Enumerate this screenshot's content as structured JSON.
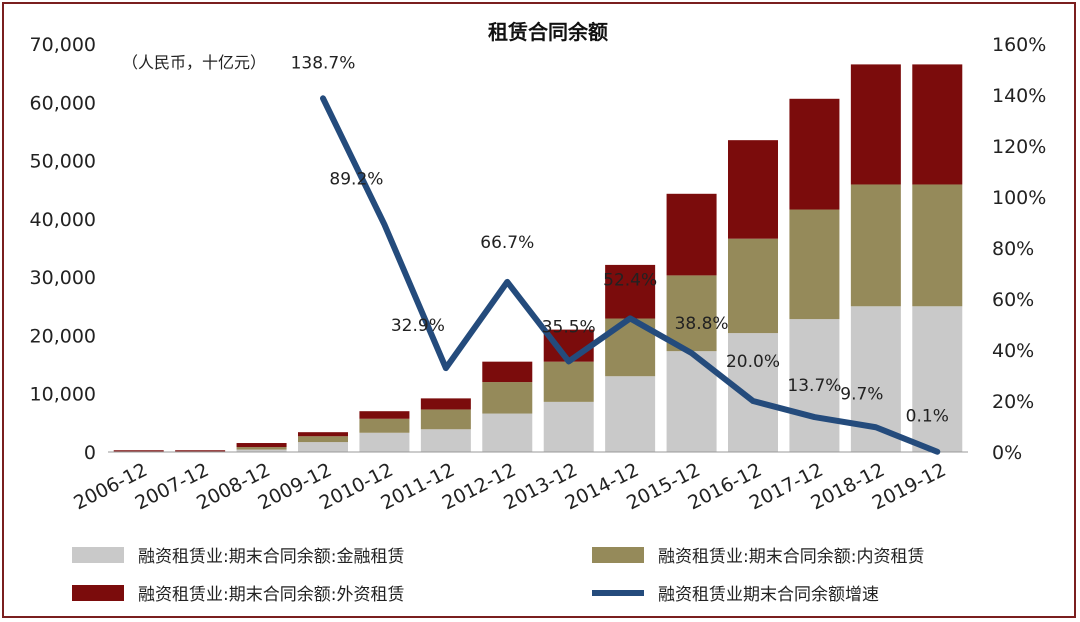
{
  "chart_data": {
    "type": "bar",
    "title": "租赁合同余额",
    "unit_note": "（人民币，十亿元）",
    "categories": [
      "2006-12",
      "2007-12",
      "2008-12",
      "2009-12",
      "2010-12",
      "2011-12",
      "2012-12",
      "2013-12",
      "2014-12",
      "2015-12",
      "2016-12",
      "2017-12",
      "2018-12",
      "2019-12"
    ],
    "stacked_series": [
      {
        "name": "融资租赁业:期末合同余额:金融租赁",
        "color": "#c9c9c9",
        "values": [
          100,
          100,
          420,
          1700,
          3300,
          3900,
          6600,
          8600,
          13000,
          17300,
          20400,
          22800,
          25000,
          25000
        ]
      },
      {
        "name": "融资租赁业:期末合同余额:内资租赁",
        "color": "#958a5a",
        "values": [
          0,
          0,
          420,
          1000,
          2400,
          3400,
          5400,
          6900,
          9900,
          13000,
          16200,
          18800,
          20900,
          20900
        ]
      },
      {
        "name": "融资租赁业:期末合同余额:外资租赁",
        "color": "#7b0c0c",
        "values": [
          200,
          200,
          700,
          700,
          1300,
          1900,
          3500,
          5500,
          9200,
          14000,
          16900,
          19000,
          20600,
          20600
        ]
      }
    ],
    "line_series": {
      "name": "融资租赁业期末合同余额增速",
      "color": "#244b7c",
      "categories": [
        "2009-12",
        "2010-12",
        "2011-12",
        "2012-12",
        "2013-12",
        "2014-12",
        "2015-12",
        "2016-12",
        "2017-12",
        "2018-12",
        "2019-12"
      ],
      "values": [
        138.7,
        89.2,
        32.9,
        66.7,
        35.5,
        52.4,
        38.8,
        20.0,
        13.7,
        9.7,
        0.1
      ],
      "labels": [
        "138.7%",
        "89.2%",
        "32.9%",
        "66.7%",
        "35.5%",
        "52.4%",
        "38.8%",
        "20.0%",
        "13.7%",
        "9.7%",
        "0.1%"
      ]
    },
    "y_left": {
      "min": 0,
      "max": 70000,
      "ticks": [
        "0",
        "10,000",
        "20,000",
        "30,000",
        "40,000",
        "50,000",
        "60,000",
        "70,000"
      ]
    },
    "y_right": {
      "min": 0,
      "max": 160,
      "ticks": [
        "0%",
        "20%",
        "40%",
        "60%",
        "80%",
        "100%",
        "120%",
        "140%",
        "160%"
      ]
    },
    "legend_position": "bottom",
    "grid": false
  }
}
